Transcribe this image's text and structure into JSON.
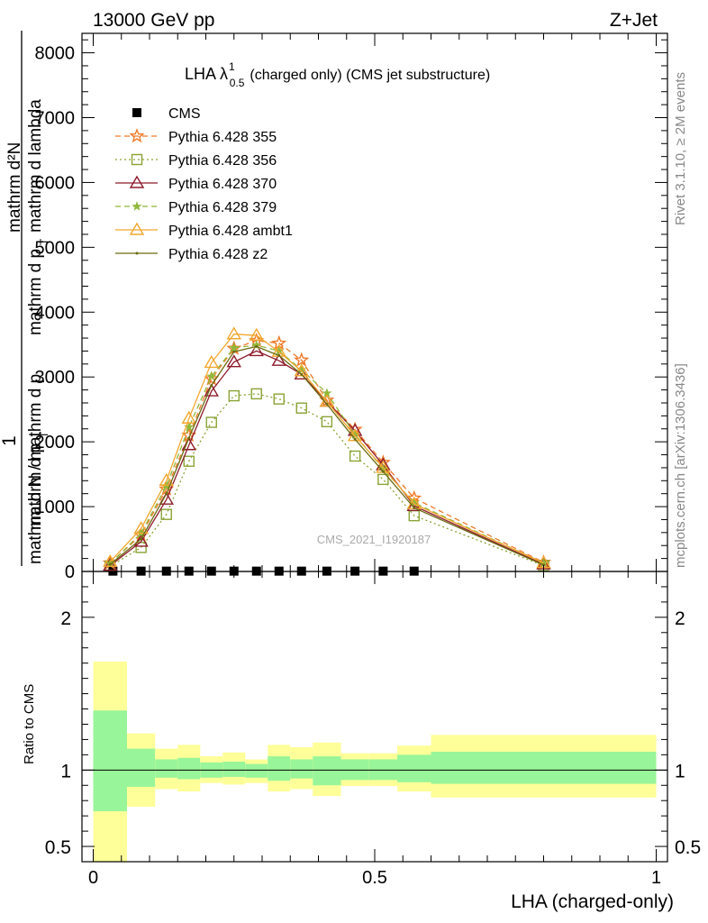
{
  "header": {
    "left": "13000 GeV pp",
    "right": "Z+Jet"
  },
  "side": {
    "rivet": "Rivet 3.1.10, ≥ 2M events",
    "mcplots": "mcplots.cern.ch [arXiv:1306.3436]"
  },
  "analysis_id": "CMS_2021_I1920187",
  "colors": {
    "cms": "#000000",
    "p355": "#ef7a29",
    "p356": "#8aa336",
    "p370": "#8e1b2a",
    "p379": "#91b83a",
    "ambt1": "#f2a72f",
    "z2": "#6b6b12",
    "band_inner": "#99f599",
    "band_outer": "#ffff99"
  },
  "chart_data": [
    {
      "type": "line",
      "title": "LHA λ",
      "title_sup": "1",
      "title_sub": "0.5",
      "title_rest": "(charged only) (CMS jet substructure)",
      "ylabel_num": "mathrm d²N",
      "ylabel_num_lines": [
        "mathrm d²N",
        "mathrm d p",
        "mathrm d lambda"
      ],
      "ylabel_den_lines": [
        "1",
        "mathrm d N / mathrm d p"
      ],
      "ylabel_sub": "T",
      "xlim": [
        -0.02,
        1.02
      ],
      "ylim": [
        0,
        8300
      ],
      "yticks": [
        0,
        1000,
        2000,
        3000,
        4000,
        5000,
        6000,
        7000,
        8000
      ],
      "ytick_labels": [
        "0",
        "1000",
        "2000",
        "3000",
        "4000",
        "5000",
        "6000",
        "7000",
        "8000"
      ],
      "legend_position": "top-left",
      "series": [
        {
          "name": "CMS",
          "key": "cms",
          "marker": "square",
          "x": [
            0.035,
            0.085,
            0.13,
            0.17,
            0.21,
            0.25,
            0.29,
            0.33,
            0.37,
            0.415,
            0.465,
            0.515,
            0.57
          ],
          "y": [
            5,
            5,
            5,
            5,
            5,
            5,
            5,
            5,
            5,
            5,
            5,
            5,
            5
          ]
        },
        {
          "name": "Pythia 6.428 355",
          "key": "p355",
          "marker": "star",
          "dash": "6,4",
          "x": [
            0.03,
            0.085,
            0.13,
            0.17,
            0.21,
            0.25,
            0.29,
            0.33,
            0.37,
            0.415,
            0.465,
            0.515,
            0.57,
            0.8
          ],
          "y": [
            130,
            560,
            1270,
            2100,
            2970,
            3440,
            3560,
            3520,
            3260,
            2640,
            2190,
            1680,
            1130,
            140
          ]
        },
        {
          "name": "Pythia 6.428 356",
          "key": "p356",
          "marker": "open-square",
          "dash": "2,3",
          "x": [
            0.03,
            0.085,
            0.13,
            0.17,
            0.21,
            0.25,
            0.29,
            0.33,
            0.37,
            0.415,
            0.465,
            0.515,
            0.57,
            0.8
          ],
          "y": [
            80,
            370,
            880,
            1700,
            2300,
            2710,
            2740,
            2660,
            2520,
            2310,
            1780,
            1420,
            860,
            90
          ]
        },
        {
          "name": "Pythia 6.428 370",
          "key": "p370",
          "marker": "open-triangle",
          "dash": "",
          "x": [
            0.03,
            0.085,
            0.13,
            0.17,
            0.21,
            0.25,
            0.29,
            0.33,
            0.37,
            0.415,
            0.465,
            0.515,
            0.57,
            0.8
          ],
          "y": [
            90,
            460,
            1110,
            1950,
            2780,
            3230,
            3400,
            3250,
            3040,
            2620,
            2170,
            1640,
            1010,
            110
          ]
        },
        {
          "name": "Pythia 6.428 379",
          "key": "p379",
          "marker": "small-star",
          "dash": "6,4",
          "x": [
            0.03,
            0.085,
            0.13,
            0.17,
            0.21,
            0.25,
            0.29,
            0.33,
            0.37,
            0.415,
            0.465,
            0.515,
            0.57,
            0.8
          ],
          "y": [
            120,
            590,
            1320,
            2230,
            3010,
            3450,
            3490,
            3400,
            3110,
            2750,
            2110,
            1580,
            1060,
            130
          ]
        },
        {
          "name": "Pythia 6.428 ambt1",
          "key": "ambt1",
          "marker": "open-triangle",
          "dash": "",
          "x": [
            0.03,
            0.085,
            0.13,
            0.17,
            0.21,
            0.25,
            0.29,
            0.33,
            0.37,
            0.415,
            0.465,
            0.515,
            0.57,
            0.8
          ],
          "y": [
            150,
            660,
            1400,
            2360,
            3220,
            3660,
            3640,
            3390,
            3090,
            2620,
            2090,
            1600,
            1040,
            130
          ]
        },
        {
          "name": "Pythia 6.428 z2",
          "key": "z2",
          "marker": "dot",
          "dash": "",
          "x": [
            0.03,
            0.085,
            0.13,
            0.17,
            0.21,
            0.25,
            0.29,
            0.33,
            0.37,
            0.415,
            0.465,
            0.515,
            0.57,
            0.8
          ],
          "y": [
            110,
            500,
            1200,
            2060,
            2870,
            3390,
            3470,
            3330,
            3040,
            2580,
            2040,
            1540,
            980,
            100
          ]
        }
      ]
    },
    {
      "type": "area",
      "ylabel": "Ratio to CMS",
      "xlabel": "LHA (charged-only)",
      "xlim": [
        -0.02,
        1.02
      ],
      "ylim": [
        0.4,
        2.3
      ],
      "yticks": [
        0.5,
        1,
        2
      ],
      "ytick_labels": [
        "0.5",
        "1",
        "2"
      ],
      "xticks": [
        0,
        0.5,
        1
      ],
      "xtick_labels": [
        "0",
        "0.5",
        "1"
      ],
      "bins": [
        0.0,
        0.06,
        0.11,
        0.15,
        0.19,
        0.23,
        0.27,
        0.31,
        0.35,
        0.39,
        0.44,
        0.49,
        0.54,
        0.6,
        1.0
      ],
      "inner_lo": [
        0.73,
        0.89,
        0.95,
        0.94,
        0.95,
        0.955,
        0.95,
        0.93,
        0.945,
        0.9,
        0.935,
        0.935,
        0.92,
        0.91
      ],
      "inner_hi": [
        1.39,
        1.14,
        1.07,
        1.08,
        1.05,
        1.055,
        1.04,
        1.09,
        1.07,
        1.09,
        1.07,
        1.07,
        1.1,
        1.12
      ],
      "outer_lo": [
        0.35,
        0.76,
        0.875,
        0.86,
        0.915,
        0.905,
        0.915,
        0.86,
        0.875,
        0.83,
        0.895,
        0.895,
        0.86,
        0.82
      ],
      "outer_hi": [
        1.71,
        1.24,
        1.14,
        1.165,
        1.09,
        1.115,
        1.07,
        1.165,
        1.15,
        1.18,
        1.11,
        1.11,
        1.16,
        1.23
      ]
    }
  ]
}
